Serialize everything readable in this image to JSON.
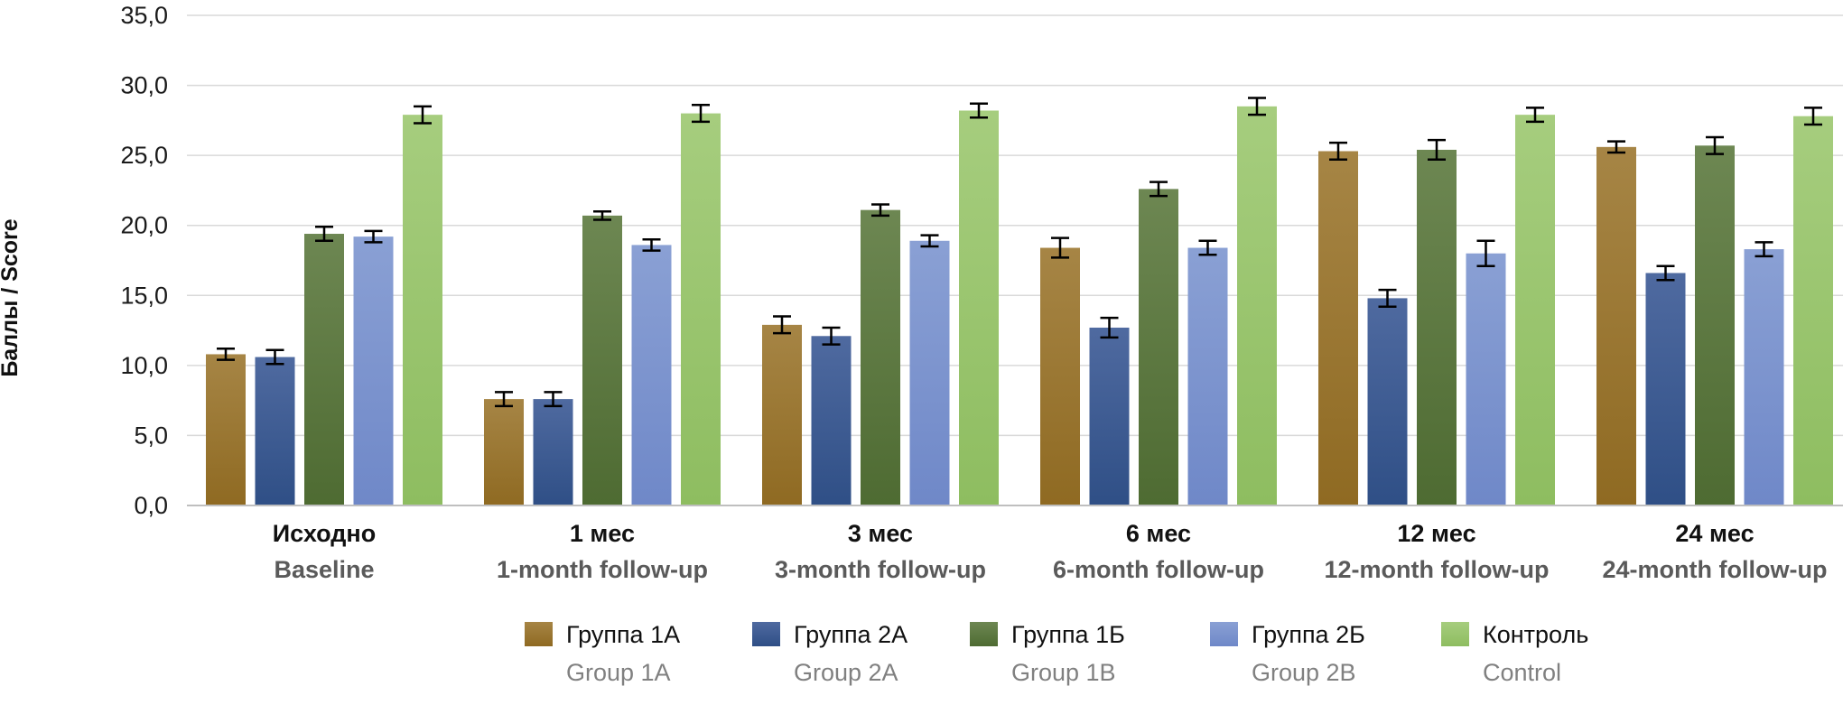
{
  "chart_data": {
    "type": "bar",
    "ylabel": "Баллы / Score",
    "ylim": [
      0,
      35
    ],
    "yticks": [
      "0,0",
      "5,0",
      "10,0",
      "15,0",
      "20,0",
      "25,0",
      "30,0",
      "35,0"
    ],
    "grid": true,
    "legend_position": "bottom",
    "categories": [
      {
        "ru": "Исходно",
        "en": "Baseline"
      },
      {
        "ru": "1 мес",
        "en": "1-month follow-up"
      },
      {
        "ru": "3 мес",
        "en": "3-month follow-up"
      },
      {
        "ru": "6 мес",
        "en": "6-month follow-up"
      },
      {
        "ru": "12 мес",
        "en": "12-month follow-up"
      },
      {
        "ru": "24 мес",
        "en": "24-month follow-up"
      }
    ],
    "series": [
      {
        "name": "Группа 1А",
        "name_en": "Group 1A",
        "color": "#8f6a22",
        "color_light": "#a68545",
        "values": [
          10.8,
          7.6,
          12.9,
          18.4,
          25.3,
          25.6
        ],
        "errors": [
          0.4,
          0.5,
          0.6,
          0.7,
          0.6,
          0.4
        ]
      },
      {
        "name": "Группа 2А",
        "name_en": "Group 2A",
        "color": "#2f4f86",
        "color_light": "#4f6aa0",
        "values": [
          10.6,
          7.6,
          12.1,
          12.7,
          14.8,
          16.6
        ],
        "errors": [
          0.5,
          0.5,
          0.6,
          0.7,
          0.6,
          0.5
        ]
      },
      {
        "name": "Группа 1Б",
        "name_en": "Group 1B",
        "color": "#4e6b32",
        "color_light": "#6d8752",
        "values": [
          19.4,
          20.7,
          21.1,
          22.6,
          25.4,
          25.7
        ],
        "errors": [
          0.5,
          0.3,
          0.4,
          0.5,
          0.7,
          0.6
        ]
      },
      {
        "name": "Группа 2Б",
        "name_en": "Group 2B",
        "color": "#6f88c8",
        "color_light": "#8aa0d4",
        "values": [
          19.2,
          18.6,
          18.9,
          18.4,
          18.0,
          18.3
        ],
        "errors": [
          0.4,
          0.4,
          0.4,
          0.5,
          0.9,
          0.5
        ]
      },
      {
        "name": "Контроль",
        "name_en": "Control",
        "color": "#8ebd60",
        "color_light": "#a6cd7e",
        "values": [
          27.9,
          28.0,
          28.2,
          28.5,
          27.9,
          27.8
        ],
        "errors": [
          0.6,
          0.6,
          0.5,
          0.6,
          0.5,
          0.6
        ]
      }
    ]
  }
}
